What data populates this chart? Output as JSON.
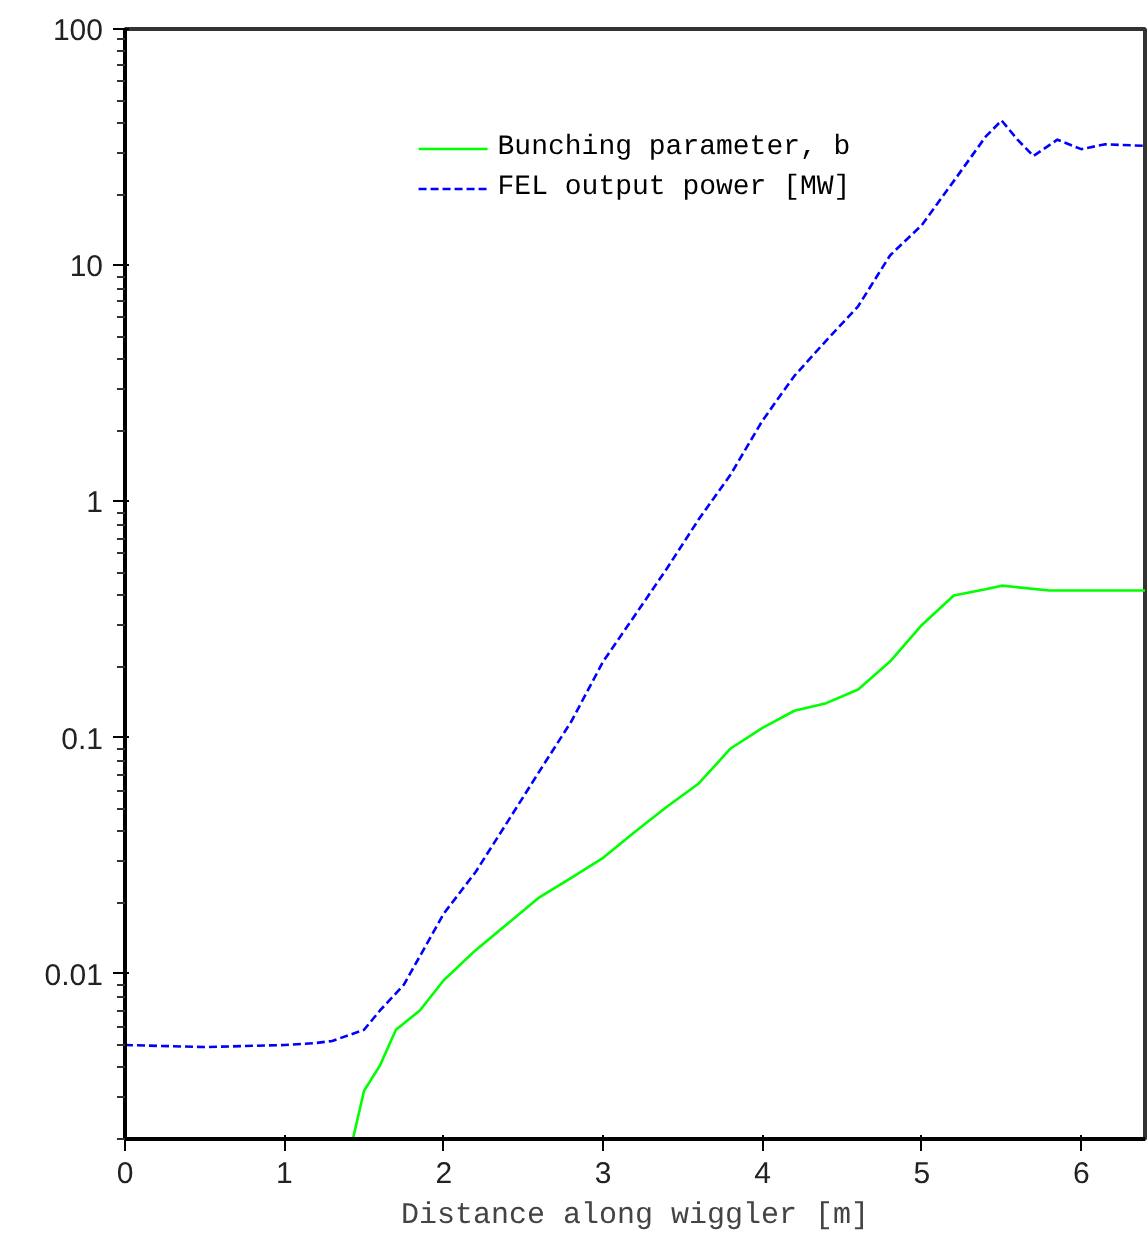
{
  "chart_data": {
    "type": "line",
    "xlabel": "Distance along wiggler [m]",
    "xlim": [
      0,
      6.4
    ],
    "xticks": [
      0,
      1,
      2,
      3,
      4,
      5,
      6
    ],
    "ylim": [
      0.002,
      100
    ],
    "yticks": [
      0.01,
      0.1,
      1,
      10,
      100
    ],
    "log": "y",
    "grid": false,
    "legend": "top",
    "series": [
      {
        "name": "Bunching parameter, b",
        "color": "#00ff00",
        "line_style": "solid",
        "x": [
          1.43,
          1.5,
          1.6,
          1.7,
          1.85,
          2.0,
          2.2,
          2.4,
          2.6,
          2.8,
          3.0,
          3.2,
          3.4,
          3.6,
          3.8,
          4.0,
          4.2,
          4.4,
          4.6,
          4.8,
          5.0,
          5.2,
          5.4,
          5.5,
          5.8,
          6.4
        ],
        "values": [
          0.002,
          0.0032,
          0.0041,
          0.0058,
          0.007,
          0.0094,
          0.0126,
          0.0163,
          0.0211,
          0.0255,
          0.031,
          0.04,
          0.051,
          0.064,
          0.09,
          0.11,
          0.13,
          0.14,
          0.16,
          0.21,
          0.3,
          0.4,
          0.425,
          0.44,
          0.42,
          0.42
        ]
      },
      {
        "name": "FEL output power [MW]",
        "color": "#0000ff",
        "line_style": "dashed",
        "x": [
          0,
          0.5,
          1.0,
          1.2,
          1.3,
          1.5,
          1.6,
          1.75,
          2.0,
          2.2,
          2.4,
          2.6,
          2.8,
          3.0,
          3.2,
          3.4,
          3.6,
          3.8,
          4.0,
          4.2,
          4.4,
          4.6,
          4.8,
          5.0,
          5.2,
          5.4,
          5.5,
          5.6,
          5.7,
          5.85,
          6.0,
          6.15,
          6.4
        ],
        "values": [
          0.005,
          0.0049,
          0.005,
          0.0051,
          0.0052,
          0.0058,
          0.007,
          0.009,
          0.018,
          0.027,
          0.044,
          0.072,
          0.117,
          0.21,
          0.33,
          0.52,
          0.84,
          1.3,
          2.2,
          3.4,
          4.8,
          6.7,
          11,
          14.8,
          22.7,
          35,
          41,
          34,
          29,
          34,
          31,
          32.5,
          32
        ]
      }
    ]
  }
}
